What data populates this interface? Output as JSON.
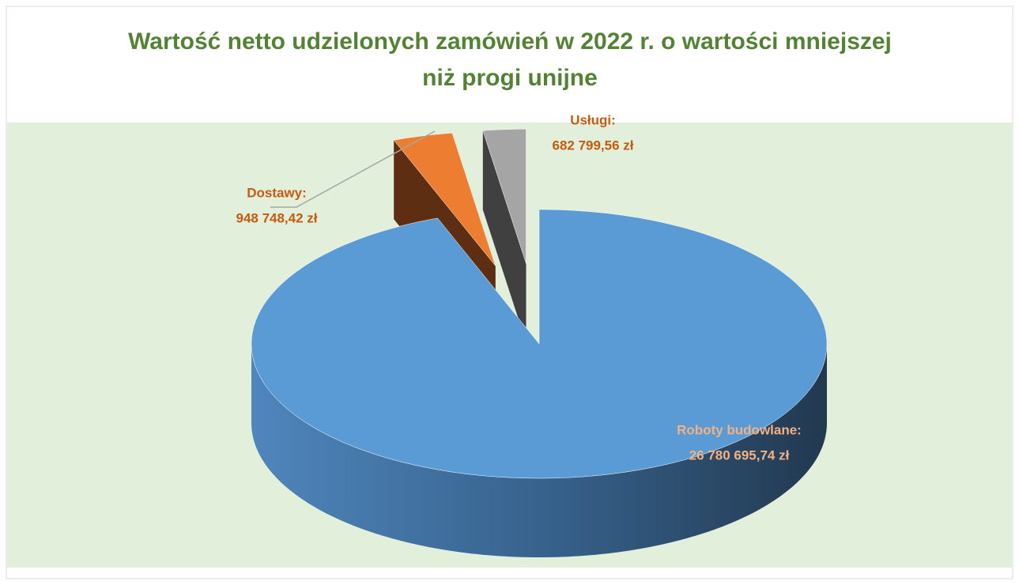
{
  "chart_data": {
    "type": "pie3d",
    "title": "Wartość netto udzielonych zamówień w 2022 r. o wartości mniejszej niż progi unijne",
    "categories": [
      "Roboty budowlane:",
      "Dostawy:",
      "Usługi:"
    ],
    "values": [
      26780695.74,
      948748.42,
      682799.56
    ],
    "value_labels": [
      "26 780 695,74 zł",
      "948 748,42 zł",
      "682 799,56 zł"
    ],
    "colors": [
      "#5b9bd5",
      "#ed7d31",
      "#a5a5a5"
    ]
  }
}
